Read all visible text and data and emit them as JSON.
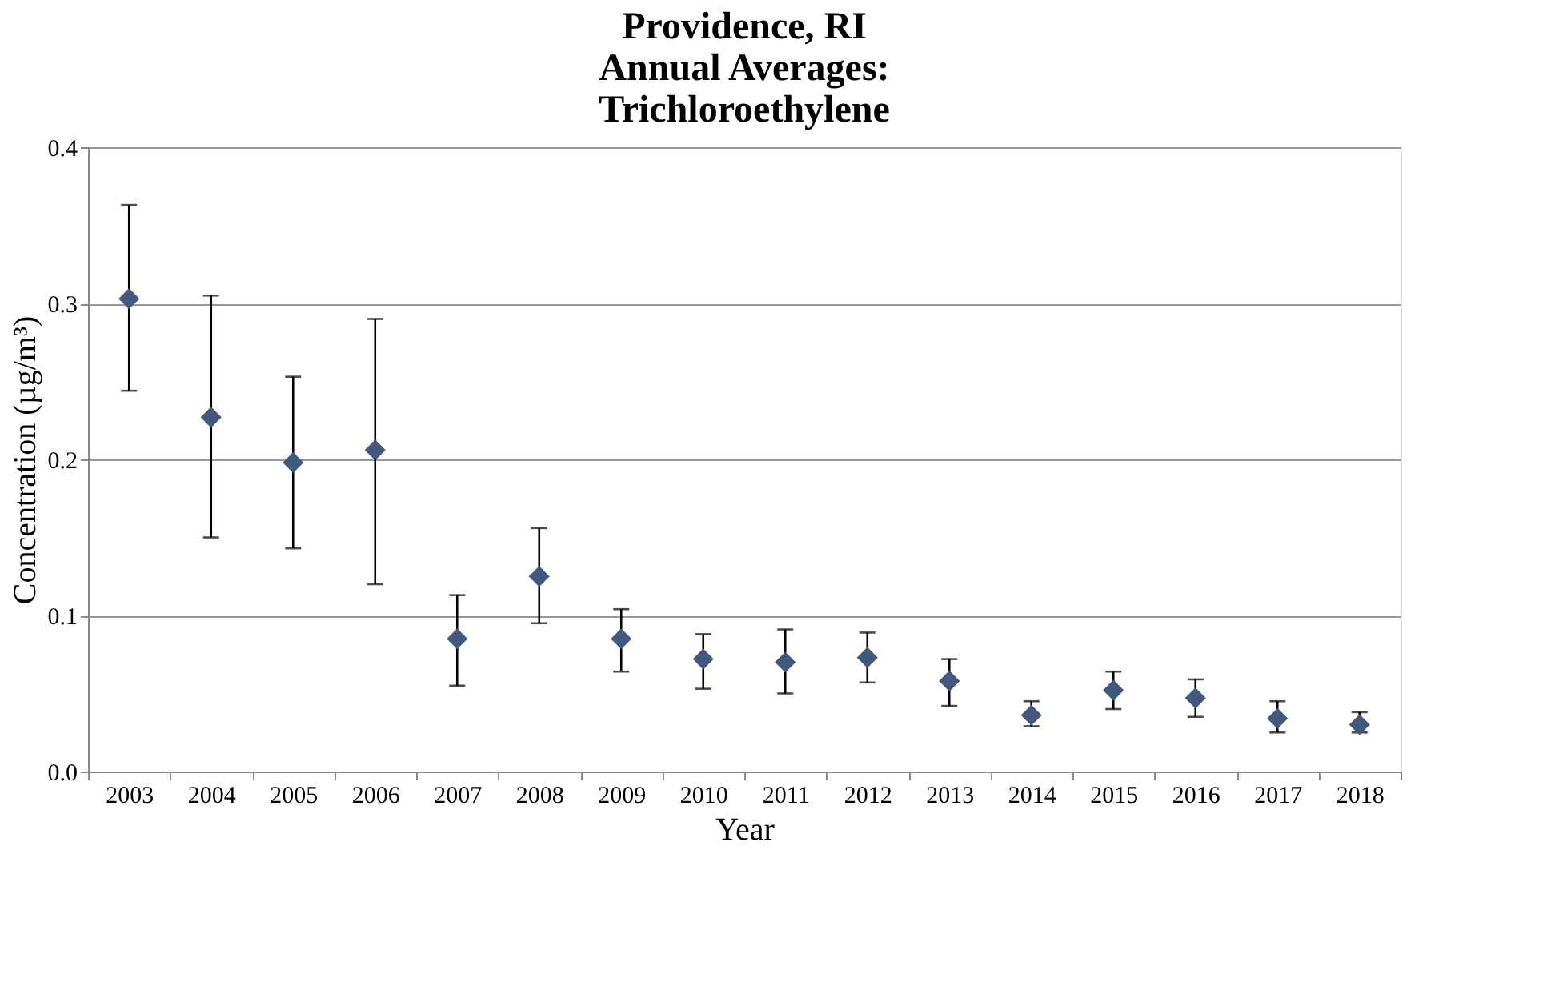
{
  "chart_data": {
    "type": "scatter",
    "title": [
      "Providence, RI",
      "Annual Averages:",
      "Trichloroethylene"
    ],
    "xlabel": "Year",
    "ylabel": "Concentration (µg/m³)",
    "categories": [
      "2003",
      "2004",
      "2005",
      "2006",
      "2007",
      "2008",
      "2009",
      "2010",
      "2011",
      "2012",
      "2013",
      "2014",
      "2015",
      "2016",
      "2017",
      "2018"
    ],
    "series": [
      {
        "color": "#41597f",
        "values": [
          0.303,
          0.227,
          0.198,
          0.206,
          0.085,
          0.125,
          0.085,
          0.072,
          0.07,
          0.073,
          0.058,
          0.036,
          0.052,
          0.047,
          0.034,
          0.03
        ],
        "errors": [
          [
            0.244,
            0.363
          ],
          [
            0.15,
            0.305
          ],
          [
            0.143,
            0.253
          ],
          [
            0.12,
            0.29
          ],
          [
            0.055,
            0.113
          ],
          [
            0.095,
            0.156
          ],
          [
            0.064,
            0.104
          ],
          [
            0.053,
            0.088
          ],
          [
            0.05,
            0.091
          ],
          [
            0.057,
            0.089
          ],
          [
            0.042,
            0.072
          ],
          [
            0.029,
            0.045
          ],
          [
            0.04,
            0.064
          ],
          [
            0.035,
            0.059
          ],
          [
            0.025,
            0.045
          ],
          [
            0.025,
            0.038
          ]
        ]
      }
    ],
    "ylim": [
      0,
      0.4
    ],
    "yticks": [
      {
        "value": 0,
        "label": "0.0"
      },
      {
        "value": 0.1,
        "label": "0.1"
      },
      {
        "value": 0.2,
        "label": "0.2"
      },
      {
        "value": 0.3,
        "label": "0.3"
      },
      {
        "value": 0.4,
        "label": "0.4"
      }
    ],
    "grid": "y",
    "marker": "diamond"
  }
}
